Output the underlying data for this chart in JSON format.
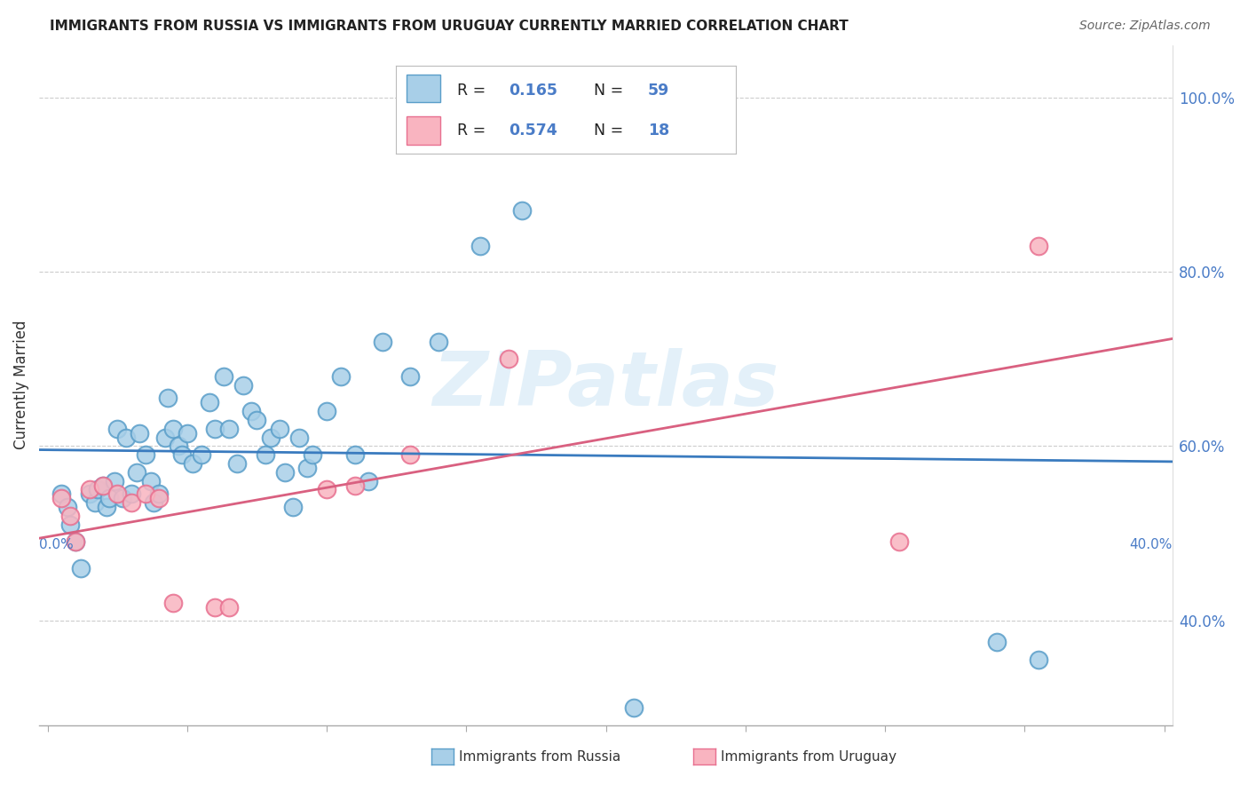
{
  "title": "IMMIGRANTS FROM RUSSIA VS IMMIGRANTS FROM URUGUAY CURRENTLY MARRIED CORRELATION CHART",
  "source": "Source: ZipAtlas.com",
  "ylabel": "Currently Married",
  "yticks": [
    0.4,
    0.6,
    0.8,
    1.0
  ],
  "ytick_labels": [
    "40.0%",
    "60.0%",
    "80.0%",
    "100.0%"
  ],
  "xlim": [
    -0.003,
    0.403
  ],
  "ylim": [
    0.28,
    1.06
  ],
  "russia_R": 0.165,
  "russia_N": 59,
  "uruguay_R": 0.574,
  "uruguay_N": 18,
  "russia_color": "#a8cfe8",
  "uruguay_color": "#f9b4c0",
  "russia_edge_color": "#5a9ec9",
  "uruguay_edge_color": "#e87090",
  "russia_line_color": "#3a7bbf",
  "uruguay_line_color": "#d96080",
  "tick_color": "#4a7cc7",
  "watermark": "ZIPatlas",
  "russia_scatter_x": [
    0.005,
    0.007,
    0.008,
    0.01,
    0.012,
    0.015,
    0.017,
    0.018,
    0.02,
    0.021,
    0.022,
    0.024,
    0.025,
    0.027,
    0.028,
    0.03,
    0.032,
    0.033,
    0.035,
    0.037,
    0.038,
    0.04,
    0.042,
    0.043,
    0.045,
    0.047,
    0.048,
    0.05,
    0.052,
    0.055,
    0.058,
    0.06,
    0.063,
    0.065,
    0.068,
    0.07,
    0.073,
    0.075,
    0.078,
    0.08,
    0.083,
    0.085,
    0.088,
    0.09,
    0.093,
    0.095,
    0.1,
    0.105,
    0.11,
    0.115,
    0.12,
    0.13,
    0.14,
    0.155,
    0.17,
    0.19,
    0.21,
    0.34,
    0.355
  ],
  "russia_scatter_y": [
    0.545,
    0.53,
    0.51,
    0.49,
    0.46,
    0.545,
    0.535,
    0.55,
    0.555,
    0.53,
    0.54,
    0.56,
    0.62,
    0.54,
    0.61,
    0.545,
    0.57,
    0.615,
    0.59,
    0.56,
    0.535,
    0.545,
    0.61,
    0.655,
    0.62,
    0.6,
    0.59,
    0.615,
    0.58,
    0.59,
    0.65,
    0.62,
    0.68,
    0.62,
    0.58,
    0.67,
    0.64,
    0.63,
    0.59,
    0.61,
    0.62,
    0.57,
    0.53,
    0.61,
    0.575,
    0.59,
    0.64,
    0.68,
    0.59,
    0.56,
    0.72,
    0.68,
    0.72,
    0.83,
    0.87,
    0.95,
    0.3,
    0.375,
    0.355
  ],
  "uruguay_scatter_x": [
    0.005,
    0.008,
    0.01,
    0.015,
    0.02,
    0.025,
    0.03,
    0.035,
    0.04,
    0.045,
    0.06,
    0.065,
    0.1,
    0.11,
    0.13,
    0.165,
    0.305,
    0.355
  ],
  "uruguay_scatter_y": [
    0.54,
    0.52,
    0.49,
    0.55,
    0.555,
    0.545,
    0.535,
    0.545,
    0.54,
    0.42,
    0.415,
    0.415,
    0.55,
    0.555,
    0.59,
    0.7,
    0.49,
    0.83
  ]
}
